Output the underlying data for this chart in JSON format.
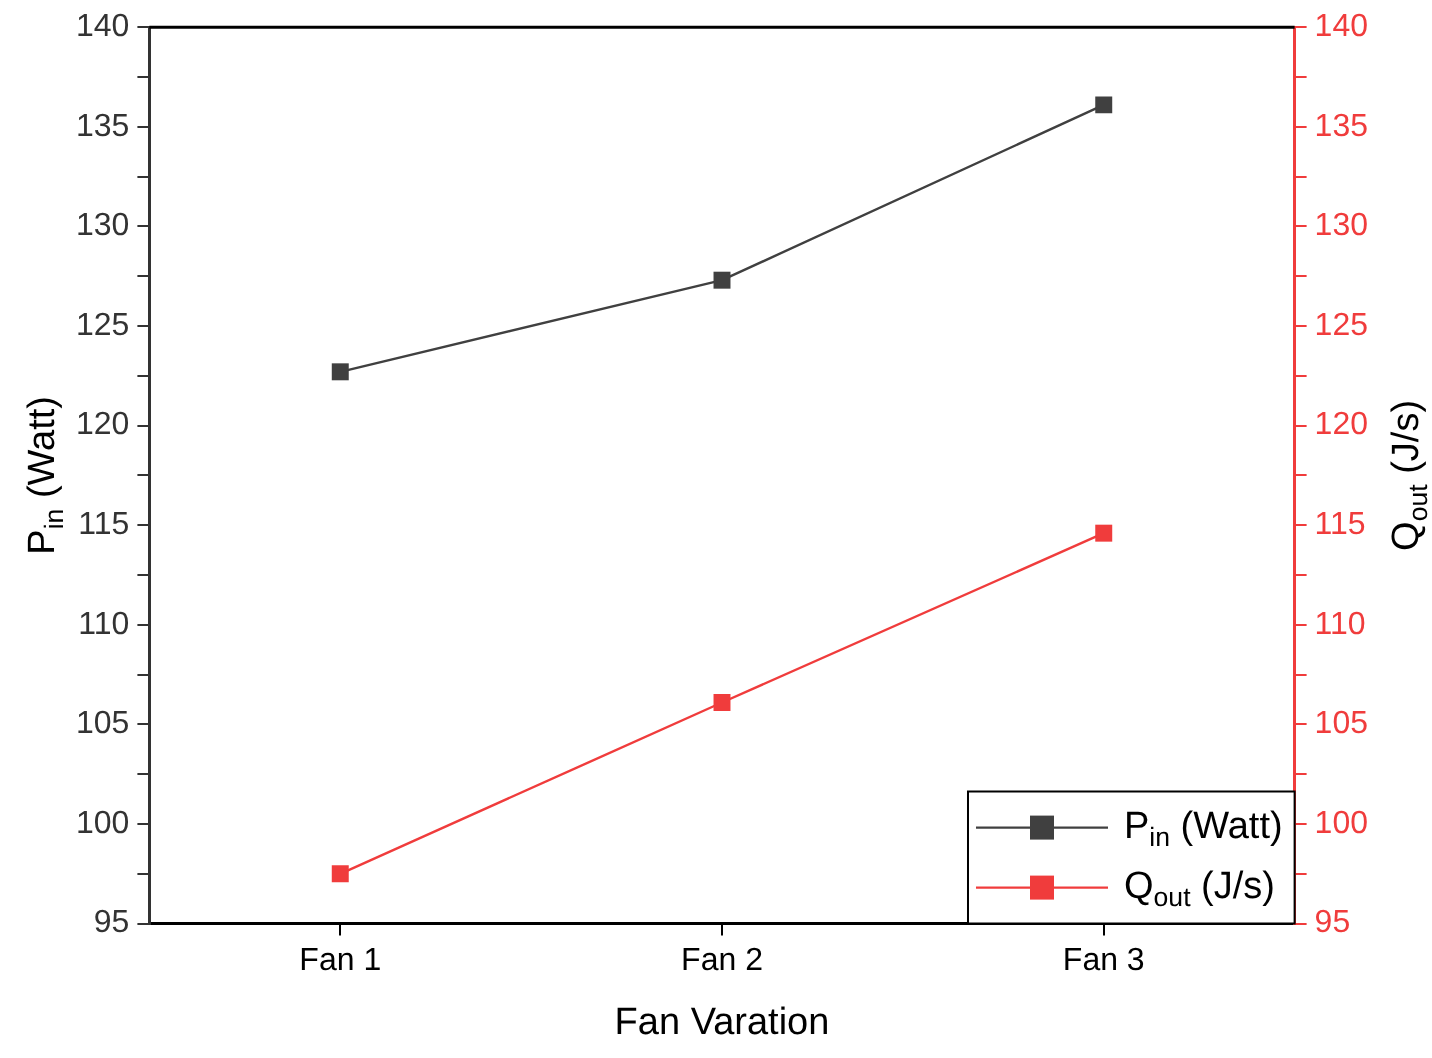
{
  "chart_data": {
    "type": "line",
    "xlabel": "Fan Varation",
    "ylabel": "P$_{in}$ (Watt)",
    "y2label": "Q$_{out}$ (J/s)",
    "categories": [
      "Fan 1",
      "Fan 2",
      "Fan 3"
    ],
    "series": [
      {
        "name": "P$_{in}$ (Watt)",
        "color": "#404040",
        "values": [
          122.7,
          127.3,
          136.1
        ]
      },
      {
        "name": "Q$_{out}$ (J/s)",
        "color": "#f03c3c",
        "values": [
          97.5,
          106.1,
          114.6
        ],
        "axis": "y2"
      }
    ],
    "ylim": [
      95,
      140
    ],
    "yticks": [
      95,
      {
        "value": 97.5,
        "label": null
      },
      100,
      {
        "value": 102.5,
        "label": null
      },
      105,
      {
        "value": 107.5,
        "label": null
      },
      110,
      {
        "value": 112.5,
        "label": null
      },
      115,
      {
        "value": 117.5,
        "label": null
      },
      120,
      {
        "value": 122.5,
        "label": null
      },
      125,
      {
        "value": 127.5,
        "label": null
      },
      130,
      {
        "value": 132.5,
        "label": null
      },
      135,
      {
        "value": 137.5,
        "label": null
      },
      140
    ],
    "y2lim": [
      95,
      140
    ],
    "y2ticks": [
      95,
      {
        "value": 97.5,
        "label": null
      },
      100,
      {
        "value": 102.5,
        "label": null
      },
      105,
      {
        "value": 107.5,
        "label": null
      },
      110,
      {
        "value": 112.5,
        "label": null
      },
      115,
      {
        "value": 117.5,
        "label": null
      },
      120,
      {
        "value": 122.5,
        "label": null
      },
      125,
      {
        "value": 127.5,
        "label": null
      },
      130,
      {
        "value": 132.5,
        "label": null
      },
      135,
      {
        "value": 137.5,
        "label": null
      },
      140
    ],
    "legend": "bottom right",
    "marker": "square",
    "line_style": "solid",
    "grid": false
  }
}
